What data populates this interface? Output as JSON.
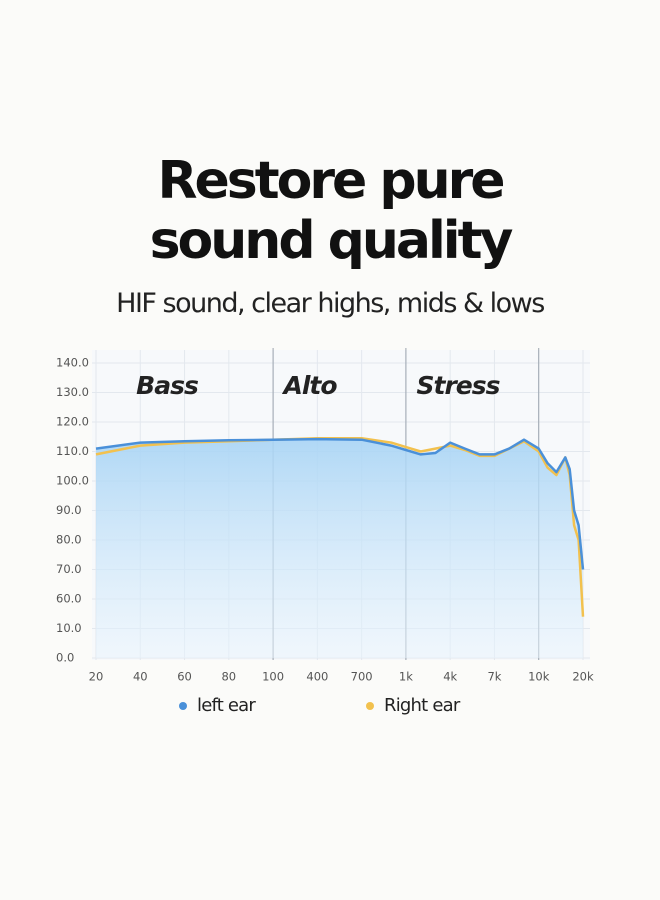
{
  "chart_data": {
    "type": "line",
    "title": [
      "Restore pure",
      "sound quality"
    ],
    "subtitle": "HIF sound, clear highs, mids & lows",
    "annotations": [
      "Bass",
      "Alto",
      "Stress"
    ],
    "x": [
      20,
      40,
      60,
      80,
      100,
      400,
      700,
      900,
      1000,
      2000,
      3000,
      4000,
      5000,
      6000,
      7000,
      8000,
      9000,
      10000,
      12000,
      14000,
      16000,
      17000,
      18000,
      19000,
      20000
    ],
    "series": [
      {
        "name": "left ear",
        "color": "#4a90d9",
        "values": [
          111,
          113,
          113.5,
          113.8,
          114,
          114.2,
          114,
          112,
          110.5,
          109,
          109.5,
          113,
          111,
          109,
          109,
          111,
          114,
          111,
          106,
          103,
          108,
          104,
          90,
          85,
          70
        ]
      },
      {
        "name": "Right ear",
        "color": "#f2c14e",
        "values": [
          109,
          112,
          113,
          113.5,
          114,
          114.5,
          114.5,
          113,
          111.5,
          110,
          111,
          112,
          110.5,
          108.5,
          108.5,
          111,
          113.5,
          110,
          104.5,
          102,
          108,
          102,
          85,
          80,
          30
        ]
      }
    ],
    "xticks": [
      20,
      40,
      60,
      80,
      100,
      400,
      700,
      {
        "value": 1000,
        "label": "1k"
      },
      {
        "value": 4000,
        "label": "4k"
      },
      {
        "value": 7000,
        "label": "7k"
      },
      {
        "value": 10000,
        "label": "10k"
      },
      {
        "value": 20000,
        "label": "20k"
      }
    ],
    "yticks": [
      {
        "value": 140,
        "label": "140.0"
      },
      {
        "value": 130,
        "label": "130.0"
      },
      {
        "value": 120,
        "label": "120.0"
      },
      {
        "value": 110,
        "label": "110.0"
      },
      {
        "value": 100,
        "label": "100.0"
      },
      {
        "value": 90,
        "label": "90.0"
      },
      {
        "value": 80,
        "label": "80.0"
      },
      {
        "value": 70,
        "label": "70.0"
      },
      {
        "value": 60,
        "label": "60.0"
      },
      {
        "value": 10,
        "label": "10.0"
      },
      {
        "value": 0,
        "label": "0.0"
      }
    ],
    "xlim": [
      20,
      20000
    ],
    "ylim": [
      0,
      140
    ],
    "grid": true
  }
}
